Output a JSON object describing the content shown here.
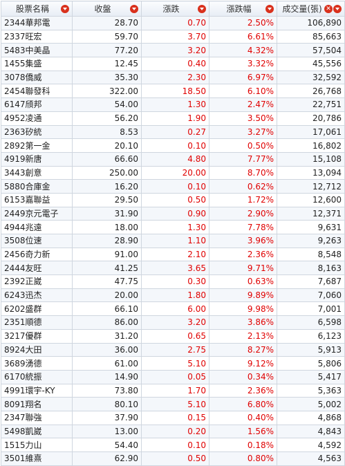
{
  "headers": {
    "name": "股票名稱",
    "close": "收盤",
    "change": "漲跌",
    "change_pct": "漲跌幅",
    "volume": "成交量(張)"
  },
  "colors": {
    "up": "#e00000",
    "header_icon": "#d9311d"
  },
  "icons": [
    "sort-down-icon",
    "close-icon"
  ],
  "rows": [
    {
      "name": "2344華邦電",
      "close": "28.70",
      "change": "0.70",
      "pct": "2.50%",
      "volume": "106,890"
    },
    {
      "name": "2337旺宏",
      "close": "59.70",
      "change": "3.70",
      "pct": "6.61%",
      "volume": "85,663"
    },
    {
      "name": "5483中美晶",
      "close": "77.20",
      "change": "3.20",
      "pct": "4.32%",
      "volume": "57,504"
    },
    {
      "name": "1455集盛",
      "close": "12.45",
      "change": "0.40",
      "pct": "3.32%",
      "volume": "45,556"
    },
    {
      "name": "3078僑威",
      "close": "35.30",
      "change": "2.30",
      "pct": "6.97%",
      "volume": "32,592"
    },
    {
      "name": "2454聯發科",
      "close": "322.00",
      "change": "18.50",
      "pct": "6.10%",
      "volume": "26,768"
    },
    {
      "name": "6147頎邦",
      "close": "54.00",
      "change": "1.30",
      "pct": "2.47%",
      "volume": "22,751"
    },
    {
      "name": "4952凌通",
      "close": "56.20",
      "change": "1.90",
      "pct": "3.50%",
      "volume": "20,786"
    },
    {
      "name": "2363矽統",
      "close": "8.53",
      "change": "0.27",
      "pct": "3.27%",
      "volume": "17,061"
    },
    {
      "name": "2892第一金",
      "close": "20.10",
      "change": "0.10",
      "pct": "0.50%",
      "volume": "16,802"
    },
    {
      "name": "4919新唐",
      "close": "66.60",
      "change": "4.80",
      "pct": "7.77%",
      "volume": "15,108"
    },
    {
      "name": "3443創意",
      "close": "250.00",
      "change": "20.00",
      "pct": "8.70%",
      "volume": "13,094"
    },
    {
      "name": "5880合庫金",
      "close": "16.20",
      "change": "0.10",
      "pct": "0.62%",
      "volume": "12,712"
    },
    {
      "name": "6153嘉聯益",
      "close": "29.50",
      "change": "0.50",
      "pct": "1.72%",
      "volume": "12,600"
    },
    {
      "name": "2449京元電子",
      "close": "31.90",
      "change": "0.90",
      "pct": "2.90%",
      "volume": "12,371"
    },
    {
      "name": "4944兆遠",
      "close": "18.00",
      "change": "1.30",
      "pct": "7.78%",
      "volume": "9,631"
    },
    {
      "name": "3508位速",
      "close": "28.90",
      "change": "1.10",
      "pct": "3.96%",
      "volume": "9,263"
    },
    {
      "name": "2456奇力新",
      "close": "91.00",
      "change": "2.10",
      "pct": "2.36%",
      "volume": "8,548"
    },
    {
      "name": "2444友旺",
      "close": "41.25",
      "change": "3.65",
      "pct": "9.71%",
      "volume": "8,163"
    },
    {
      "name": "2392正崴",
      "close": "47.75",
      "change": "0.30",
      "pct": "0.63%",
      "volume": "7,687"
    },
    {
      "name": "6243迅杰",
      "close": "20.00",
      "change": "1.80",
      "pct": "9.89%",
      "volume": "7,060"
    },
    {
      "name": "6202盛群",
      "close": "66.10",
      "change": "6.00",
      "pct": "9.98%",
      "volume": "7,001"
    },
    {
      "name": "2351順德",
      "close": "86.00",
      "change": "3.20",
      "pct": "3.86%",
      "volume": "6,598"
    },
    {
      "name": "3217優群",
      "close": "31.20",
      "change": "0.65",
      "pct": "2.13%",
      "volume": "6,123"
    },
    {
      "name": "8924大田",
      "close": "36.00",
      "change": "2.75",
      "pct": "8.27%",
      "volume": "5,913"
    },
    {
      "name": "3689湧德",
      "close": "61.00",
      "change": "5.10",
      "pct": "9.12%",
      "volume": "5,806"
    },
    {
      "name": "6170統振",
      "close": "14.90",
      "change": "0.05",
      "pct": "0.34%",
      "volume": "5,417"
    },
    {
      "name": "4991環宇-KY",
      "close": "73.80",
      "change": "1.70",
      "pct": "2.36%",
      "volume": "5,363"
    },
    {
      "name": "8091翔名",
      "close": "80.10",
      "change": "5.10",
      "pct": "6.80%",
      "volume": "5,002"
    },
    {
      "name": "2347聯強",
      "close": "37.90",
      "change": "0.15",
      "pct": "0.40%",
      "volume": "4,868"
    },
    {
      "name": "5498凱崴",
      "close": "13.00",
      "change": "0.20",
      "pct": "1.56%",
      "volume": "4,843"
    },
    {
      "name": "1515力山",
      "close": "54.40",
      "change": "0.10",
      "pct": "0.18%",
      "volume": "4,592"
    },
    {
      "name": "3501維熹",
      "close": "62.90",
      "change": "0.50",
      "pct": "0.80%",
      "volume": "4,563"
    }
  ]
}
